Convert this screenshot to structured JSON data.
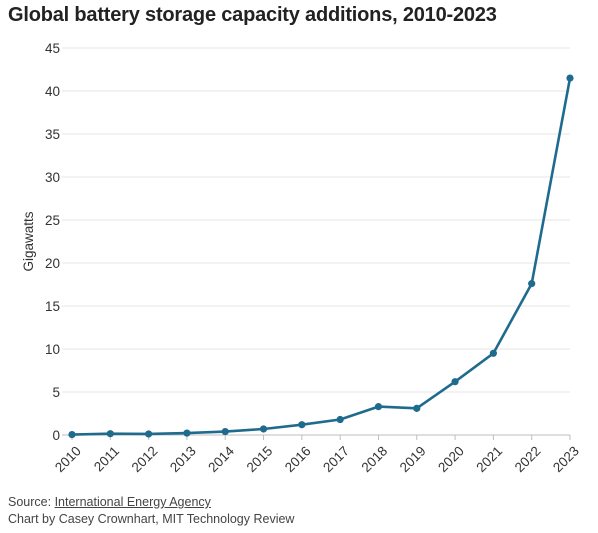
{
  "chart_data": {
    "type": "line",
    "title": "Global battery storage capacity additions, 2010-2023",
    "xlabel": "",
    "ylabel": "Gigawatts",
    "ylim": [
      0,
      45
    ],
    "yticks": [
      0,
      5,
      10,
      15,
      20,
      25,
      30,
      35,
      40,
      45
    ],
    "grid": true,
    "x": [
      "2010",
      "2011",
      "2012",
      "2013",
      "2014",
      "2015",
      "2016",
      "2017",
      "2018",
      "2019",
      "2020",
      "2021",
      "2022",
      "2023"
    ],
    "series": [
      {
        "values": [
          0.05,
          0.15,
          0.12,
          0.22,
          0.4,
          0.7,
          1.2,
          1.8,
          3.3,
          3.1,
          6.2,
          9.5,
          17.6,
          41.5
        ],
        "color": "#1f6b8e"
      }
    ]
  },
  "footer": {
    "source_prefix": "Source: ",
    "source_link": "International Energy Agency",
    "credit": "Chart by Casey Crownhart, MIT Technology Review"
  },
  "colors": {
    "line": "#1f6b8e",
    "grid": "#e6e6e6",
    "axis": "#333333"
  }
}
